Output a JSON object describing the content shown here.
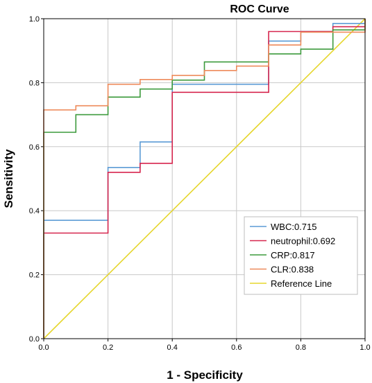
{
  "chart_data": {
    "type": "line",
    "title": "ROC Curve",
    "xlabel": "1 - Specificity",
    "ylabel": "Sensitivity",
    "xlim": [
      0,
      1
    ],
    "ylim": [
      0,
      1
    ],
    "xticks": [
      "0.0",
      "0.2",
      "0.4",
      "0.6",
      "0.8",
      "1.0"
    ],
    "yticks": [
      "0.0",
      "0.2",
      "0.4",
      "0.6",
      "0.8",
      "1.0"
    ],
    "grid": true,
    "legend_position": "bottom-right",
    "series": [
      {
        "name": "WBC:0.715",
        "color": "#5b9bd5",
        "points": [
          [
            0,
            0
          ],
          [
            0,
            0.37
          ],
          [
            0.2,
            0.37
          ],
          [
            0.2,
            0.535
          ],
          [
            0.3,
            0.535
          ],
          [
            0.3,
            0.615
          ],
          [
            0.4,
            0.615
          ],
          [
            0.4,
            0.795
          ],
          [
            0.7,
            0.795
          ],
          [
            0.7,
            0.93
          ],
          [
            0.8,
            0.93
          ],
          [
            0.8,
            0.96
          ],
          [
            0.9,
            0.96
          ],
          [
            0.9,
            0.985
          ],
          [
            1,
            0.985
          ],
          [
            1,
            1
          ]
        ]
      },
      {
        "name": "neutrophil:0.692",
        "color": "#d6254d",
        "points": [
          [
            0,
            0
          ],
          [
            0,
            0.33
          ],
          [
            0.2,
            0.33
          ],
          [
            0.2,
            0.52
          ],
          [
            0.3,
            0.52
          ],
          [
            0.3,
            0.548
          ],
          [
            0.4,
            0.548
          ],
          [
            0.4,
            0.77
          ],
          [
            0.7,
            0.77
          ],
          [
            0.7,
            0.96
          ],
          [
            0.9,
            0.96
          ],
          [
            0.9,
            0.975
          ],
          [
            1,
            0.975
          ],
          [
            1,
            1
          ]
        ]
      },
      {
        "name": "CRP:0.817",
        "color": "#3c9a3c",
        "points": [
          [
            0,
            0
          ],
          [
            0,
            0.645
          ],
          [
            0.1,
            0.645
          ],
          [
            0.1,
            0.7
          ],
          [
            0.2,
            0.7
          ],
          [
            0.2,
            0.755
          ],
          [
            0.3,
            0.755
          ],
          [
            0.3,
            0.78
          ],
          [
            0.4,
            0.78
          ],
          [
            0.4,
            0.808
          ],
          [
            0.5,
            0.808
          ],
          [
            0.5,
            0.865
          ],
          [
            0.7,
            0.865
          ],
          [
            0.7,
            0.89
          ],
          [
            0.8,
            0.89
          ],
          [
            0.8,
            0.905
          ],
          [
            0.9,
            0.905
          ],
          [
            0.9,
            0.965
          ],
          [
            1,
            0.965
          ],
          [
            1,
            1
          ]
        ]
      },
      {
        "name": "CLR:0.838",
        "color": "#ee8a5a",
        "points": [
          [
            0,
            0
          ],
          [
            0,
            0.715
          ],
          [
            0.1,
            0.715
          ],
          [
            0.1,
            0.728
          ],
          [
            0.2,
            0.728
          ],
          [
            0.2,
            0.795
          ],
          [
            0.3,
            0.795
          ],
          [
            0.3,
            0.81
          ],
          [
            0.4,
            0.81
          ],
          [
            0.4,
            0.823
          ],
          [
            0.5,
            0.823
          ],
          [
            0.5,
            0.838
          ],
          [
            0.6,
            0.838
          ],
          [
            0.6,
            0.852
          ],
          [
            0.7,
            0.852
          ],
          [
            0.7,
            0.918
          ],
          [
            0.8,
            0.918
          ],
          [
            0.8,
            0.958
          ],
          [
            1,
            0.958
          ],
          [
            1,
            1
          ]
        ]
      },
      {
        "name": "Reference Line",
        "color": "#e6d62c",
        "points": [
          [
            0,
            0
          ],
          [
            1,
            1
          ]
        ]
      }
    ]
  }
}
